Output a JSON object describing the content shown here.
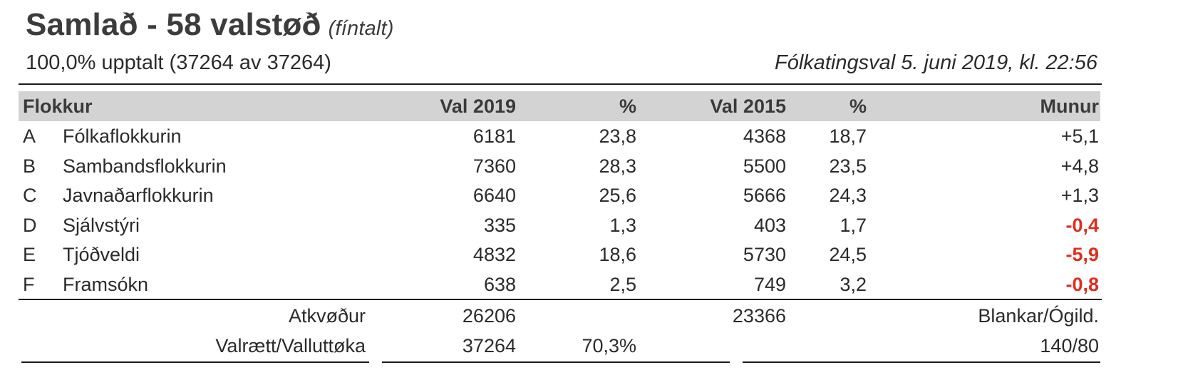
{
  "title": {
    "main": "Samlað - 58 valstøð",
    "sub": "(fíntalt)"
  },
  "status": {
    "count": "100,0% upptalt (37264 av 37264)",
    "election": "Fólkatingsval 5. juni 2019, kl. 22:56"
  },
  "table": {
    "headers": {
      "party": "Flokkur",
      "val2019": "Val 2019",
      "pct2019": "%",
      "val2015": "Val 2015",
      "pct2015": "%",
      "diff": "Munur"
    },
    "rows": [
      {
        "letter": "A",
        "name": "Fólkaflokkurin",
        "v2019": "6181",
        "p2019": "23,8",
        "v2015": "4368",
        "p2015": "18,7",
        "diff": "+5,1",
        "negative": false
      },
      {
        "letter": "B",
        "name": "Sambandsflokkurin",
        "v2019": "7360",
        "p2019": "28,3",
        "v2015": "5500",
        "p2015": "23,5",
        "diff": "+4,8",
        "negative": false
      },
      {
        "letter": "C",
        "name": "Javnaðarflokkurin",
        "v2019": "6640",
        "p2019": "25,6",
        "v2015": "5666",
        "p2015": "24,3",
        "diff": "+1,3",
        "negative": false
      },
      {
        "letter": "D",
        "name": "Sjálvstýri",
        "v2019": "335",
        "p2019": "1,3",
        "v2015": "403",
        "p2015": "1,7",
        "diff": "-0,4",
        "negative": true
      },
      {
        "letter": "E",
        "name": "Tjóðveldi",
        "v2019": "4832",
        "p2019": "18,6",
        "v2015": "5730",
        "p2015": "24,5",
        "diff": "-5,9",
        "negative": true
      },
      {
        "letter": "F",
        "name": "Framsókn",
        "v2019": "638",
        "p2019": "2,5",
        "v2015": "749",
        "p2015": "3,2",
        "diff": "-0,8",
        "negative": true
      }
    ],
    "colors": {
      "negative": "#e02d1e",
      "header_bg": "#d3d3d3"
    }
  },
  "summary": {
    "votes_label": "Atkvøður",
    "votes_2019": "26206",
    "votes_2015": "23366",
    "blank_label": "Blankar/Ógild.",
    "eligible_label": "Valrætt/Valluttøka",
    "eligible_2019": "37264",
    "turnout_2019": "70,3%",
    "blank_value": "140/80"
  }
}
